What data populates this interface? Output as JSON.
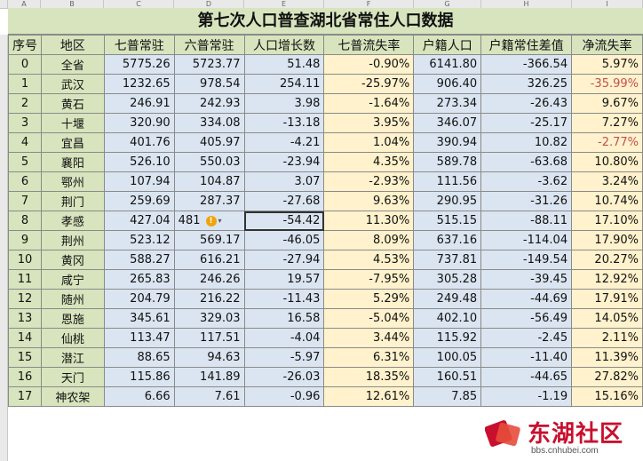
{
  "title": "第七次人口普查湖北省常住人口数据",
  "columns": [
    "A",
    "B",
    "C",
    "D",
    "E",
    "F",
    "G",
    "H",
    "I"
  ],
  "headers": [
    "序号",
    "地区",
    "七普常驻",
    "六普常驻",
    "人口增长数",
    "七普流失率",
    "户籍人口",
    "户籍常住差值",
    "净流失率"
  ],
  "rows": [
    [
      "0",
      "全省",
      "5775.26",
      "5723.77",
      "51.48",
      "-0.90%",
      "6141.80",
      "-366.54",
      "5.97%"
    ],
    [
      "1",
      "武汉",
      "1232.65",
      "978.54",
      "254.11",
      "-25.97%",
      "906.40",
      "326.25",
      "-35.99%"
    ],
    [
      "2",
      "黄石",
      "246.91",
      "242.93",
      "3.98",
      "-1.64%",
      "273.34",
      "-26.43",
      "9.67%"
    ],
    [
      "3",
      "十堰",
      "320.90",
      "334.08",
      "-13.18",
      "3.95%",
      "346.07",
      "-25.17",
      "7.27%"
    ],
    [
      "4",
      "宜昌",
      "401.76",
      "405.97",
      "-4.21",
      "1.04%",
      "390.94",
      "10.82",
      "-2.77%"
    ],
    [
      "5",
      "襄阳",
      "526.10",
      "550.03",
      "-23.94",
      "4.35%",
      "589.78",
      "-63.68",
      "10.80%"
    ],
    [
      "6",
      "鄂州",
      "107.94",
      "104.87",
      "3.07",
      "-2.93%",
      "111.56",
      "-3.62",
      "3.24%"
    ],
    [
      "7",
      "荆门",
      "259.69",
      "287.37",
      "-27.68",
      "9.63%",
      "290.95",
      "-31.26",
      "10.74%"
    ],
    [
      "8",
      "孝感",
      "427.04",
      "481",
      "-54.42",
      "11.30%",
      "515.15",
      "-88.11",
      "17.10%"
    ],
    [
      "9",
      "荆州",
      "523.12",
      "569.17",
      "-46.05",
      "8.09%",
      "637.16",
      "-114.04",
      "17.90%"
    ],
    [
      "10",
      "黄冈",
      "588.27",
      "616.21",
      "-27.94",
      "4.53%",
      "737.81",
      "-149.54",
      "20.27%"
    ],
    [
      "11",
      "咸宁",
      "265.83",
      "246.26",
      "19.57",
      "-7.95%",
      "305.28",
      "-39.45",
      "12.92%"
    ],
    [
      "12",
      "随州",
      "204.79",
      "216.22",
      "-11.43",
      "5.29%",
      "249.48",
      "-44.69",
      "17.91%"
    ],
    [
      "13",
      "恩施",
      "345.61",
      "329.03",
      "16.58",
      "-5.04%",
      "402.10",
      "-56.49",
      "14.05%"
    ],
    [
      "14",
      "仙桃",
      "113.47",
      "117.51",
      "-4.04",
      "3.44%",
      "115.92",
      "-2.45",
      "2.11%"
    ],
    [
      "15",
      "潜江",
      "88.65",
      "94.63",
      "-5.97",
      "6.31%",
      "100.05",
      "-11.40",
      "11.39%"
    ],
    [
      "16",
      "天门",
      "115.86",
      "141.89",
      "-26.03",
      "18.35%",
      "160.51",
      "-44.65",
      "27.82%"
    ],
    [
      "17",
      "神农架",
      "6.66",
      "7.61",
      "-0.96",
      "12.61%",
      "7.85",
      "-1.19",
      "15.16%"
    ]
  ],
  "red_net_rows": [
    1,
    4
  ],
  "colors": {
    "header_green": "#d7e4bd",
    "blue": "#dbe5f1",
    "yellow": "#fff2cc",
    "neg_red": "#c0504d"
  },
  "watermark": {
    "name": "东湖社区",
    "url": "bbs.cnhubei.com"
  },
  "icons": {
    "warning": "exclamation-circle-icon",
    "dropdown": "dropdown-arrow-icon"
  }
}
